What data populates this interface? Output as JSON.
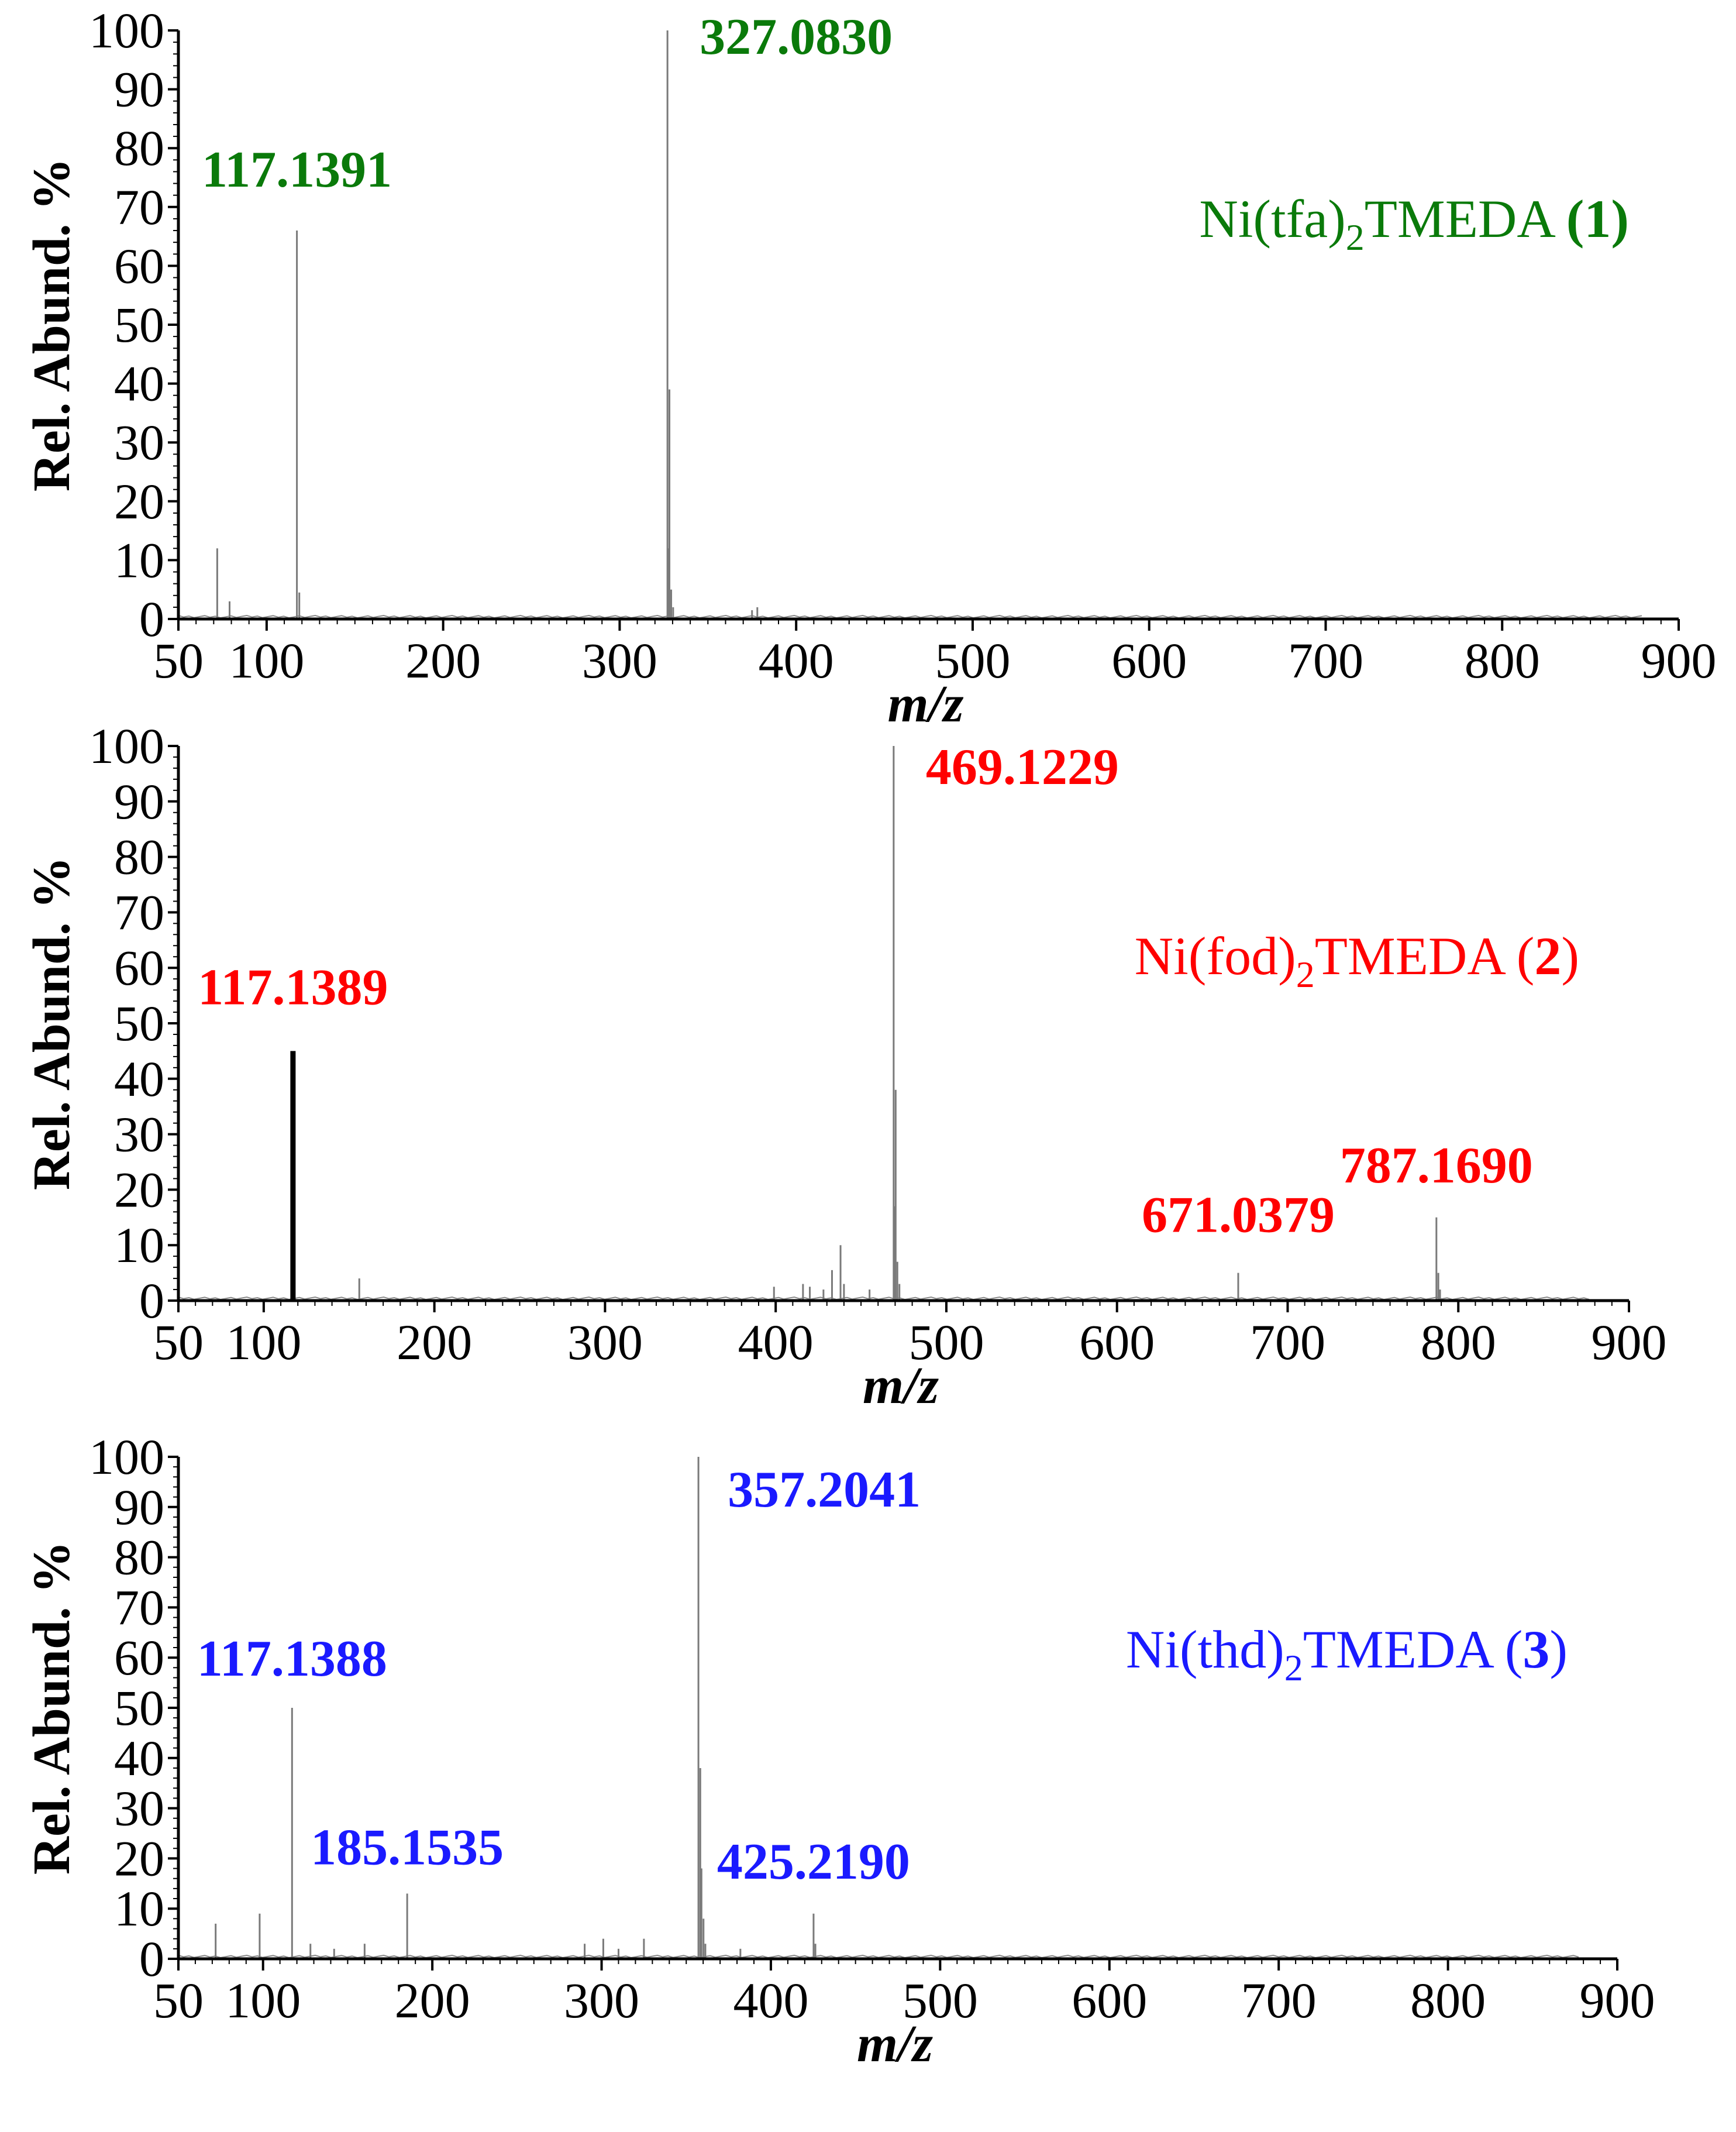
{
  "chart_data": [
    {
      "type": "bar",
      "subplot": "1",
      "xlabel": "m/z",
      "ylabel": "Rel. Abund. %",
      "xlim": [
        50,
        900
      ],
      "ylim": [
        0,
        100
      ],
      "xticks": [
        "50",
        "100",
        "200",
        "300",
        "400",
        "500",
        "600",
        "700",
        "800",
        "900"
      ],
      "yticks": [
        "0",
        "10",
        "20",
        "30",
        "40",
        "50",
        "60",
        "70",
        "80",
        "90",
        "100"
      ],
      "compound": {
        "name": "Ni(tfa)",
        "subscript": "2",
        "suffix": "TMEDA ",
        "open": "(",
        "number": "1",
        "close": ")",
        "bold_parens": true
      },
      "color": "#0a7a0a",
      "peaks": [
        {
          "mz": 72,
          "y": 12
        },
        {
          "mz": 79,
          "y": 3
        },
        {
          "mz": 117.1391,
          "y": 66
        },
        {
          "mz": 118.5,
          "y": 4.5
        },
        {
          "mz": 327.083,
          "y": 100
        },
        {
          "mz": 328.2,
          "y": 39
        },
        {
          "mz": 327.7,
          "y": 12
        },
        {
          "mz": 329.2,
          "y": 5
        },
        {
          "mz": 330.3,
          "y": 2
        },
        {
          "mz": 375,
          "y": 1.5
        },
        {
          "mz": 378,
          "y": 2
        }
      ],
      "annotations": [
        {
          "text": "117.1391",
          "mz": 117.1391
        },
        {
          "text": "327.0830",
          "mz": 327.083
        }
      ]
    },
    {
      "type": "bar",
      "subplot": "2",
      "xlabel": "m/z",
      "ylabel": "Rel. Abund. %",
      "xlim": [
        50,
        900
      ],
      "ylim": [
        0,
        100
      ],
      "xticks": [
        "50",
        "100",
        "200",
        "300",
        "400",
        "500",
        "600",
        "700",
        "800",
        "900"
      ],
      "yticks": [
        "0",
        "10",
        "20",
        "30",
        "40",
        "50",
        "60",
        "70",
        "80",
        "90",
        "100"
      ],
      "compound": {
        "name": "Ni(fod)",
        "subscript": "2",
        "suffix": "TMEDA ",
        "open": "(",
        "number": "2",
        "close": ")",
        "bold_parens": false
      },
      "color": "#ff0000",
      "peaks": [
        {
          "mz": 117.1389,
          "y": 45,
          "emphasis": true
        },
        {
          "mz": 156,
          "y": 4
        },
        {
          "mz": 399,
          "y": 2.5
        },
        {
          "mz": 416,
          "y": 3
        },
        {
          "mz": 420,
          "y": 2.5
        },
        {
          "mz": 428,
          "y": 2
        },
        {
          "mz": 433,
          "y": 5.5
        },
        {
          "mz": 438,
          "y": 10
        },
        {
          "mz": 440,
          "y": 3
        },
        {
          "mz": 455,
          "y": 2
        },
        {
          "mz": 469.1229,
          "y": 100
        },
        {
          "mz": 470.3,
          "y": 38
        },
        {
          "mz": 469.7,
          "y": 17
        },
        {
          "mz": 471.3,
          "y": 7
        },
        {
          "mz": 472.5,
          "y": 3
        },
        {
          "mz": 671.0379,
          "y": 5
        },
        {
          "mz": 787.169,
          "y": 15
        },
        {
          "mz": 788.3,
          "y": 5
        },
        {
          "mz": 789.3,
          "y": 2
        }
      ],
      "annotations": [
        {
          "text": "117.1389",
          "mz": 117.1389
        },
        {
          "text": "469.1229",
          "mz": 469.1229
        },
        {
          "text": "671.0379",
          "mz": 671.0379
        },
        {
          "text": "787.1690",
          "mz": 787.169
        }
      ]
    },
    {
      "type": "bar",
      "subplot": "3",
      "xlabel": "m/z",
      "ylabel": "Rel. Abund. %",
      "xlim": [
        50,
        900
      ],
      "ylim": [
        0,
        100
      ],
      "xticks": [
        "50",
        "100",
        "200",
        "300",
        "400",
        "500",
        "600",
        "700",
        "800",
        "900"
      ],
      "yticks": [
        "0",
        "10",
        "20",
        "30",
        "40",
        "50",
        "60",
        "70",
        "80",
        "90",
        "100"
      ],
      "compound": {
        "name": "Ni(thd)",
        "subscript": "2",
        "suffix": "TMEDA ",
        "open": "(",
        "number": "3",
        "close": ")",
        "bold_parens": false
      },
      "color": "#1a1aff",
      "peaks": [
        {
          "mz": 72,
          "y": 7
        },
        {
          "mz": 98,
          "y": 9
        },
        {
          "mz": 117.1388,
          "y": 50
        },
        {
          "mz": 128,
          "y": 3
        },
        {
          "mz": 142,
          "y": 2
        },
        {
          "mz": 160,
          "y": 3
        },
        {
          "mz": 185.1535,
          "y": 13
        },
        {
          "mz": 290,
          "y": 3
        },
        {
          "mz": 301,
          "y": 4
        },
        {
          "mz": 310,
          "y": 2
        },
        {
          "mz": 325,
          "y": 4
        },
        {
          "mz": 357.2041,
          "y": 100
        },
        {
          "mz": 358.3,
          "y": 38
        },
        {
          "mz": 359,
          "y": 18
        },
        {
          "mz": 360.2,
          "y": 8
        },
        {
          "mz": 361.3,
          "y": 3
        },
        {
          "mz": 382,
          "y": 2
        },
        {
          "mz": 425.219,
          "y": 9
        },
        {
          "mz": 426.3,
          "y": 3
        }
      ],
      "annotations": [
        {
          "text": "117.1388",
          "mz": 117.1388
        },
        {
          "text": "185.1535",
          "mz": 185.1535
        },
        {
          "text": "357.2041",
          "mz": 357.2041
        },
        {
          "text": "425.2190",
          "mz": 425.219
        }
      ]
    }
  ]
}
